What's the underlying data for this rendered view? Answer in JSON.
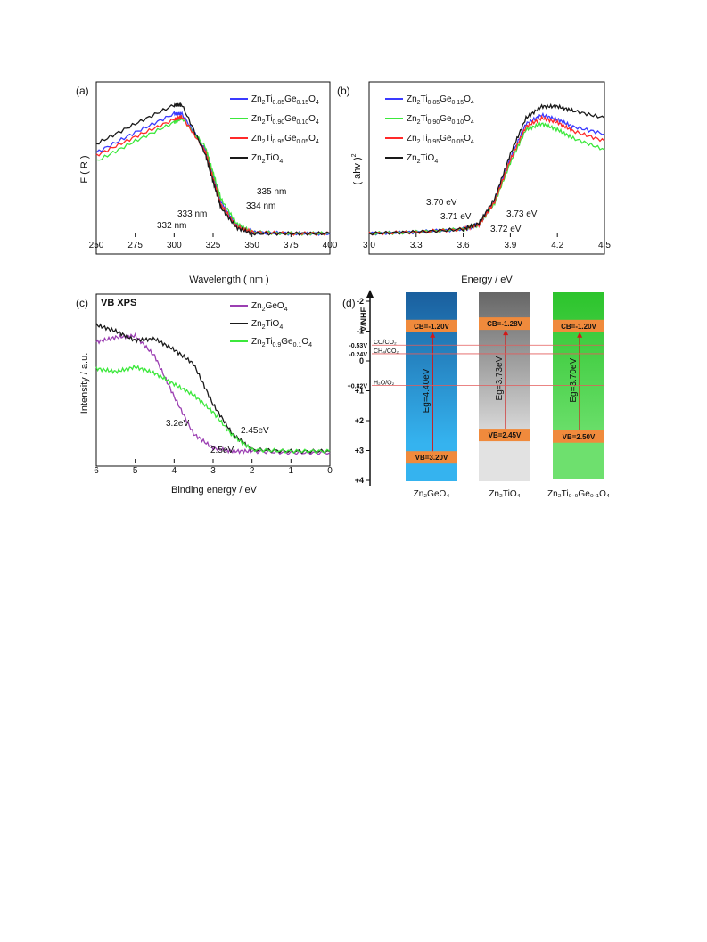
{
  "colors": {
    "blue": "#3a3aff",
    "green": "#3ce83c",
    "red": "#ff2a2a",
    "black": "#1a1a1a",
    "purple": "#9b3fb2"
  },
  "panel_a": {
    "label": "(a)",
    "xlabel": "Wavelength ( nm )",
    "ylabel": "F ( R )",
    "legend": [
      {
        "pre": "Zn",
        "s1": "2",
        "mid": "Ti",
        "s2": "0.85",
        "mid2": "Ge",
        "s3": "0.15",
        "end": "O",
        "s4": "4"
      },
      {
        "pre": "Zn",
        "s1": "2",
        "mid": "Ti",
        "s2": "0.90",
        "mid2": "Ge",
        "s3": "0.10",
        "end": "O",
        "s4": "4"
      },
      {
        "pre": "Zn",
        "s1": "2",
        "mid": "Ti",
        "s2": "0.95",
        "mid2": "Ge",
        "s3": "0.05",
        "end": "O",
        "s4": "4"
      },
      {
        "pre": "Zn",
        "s1": "2",
        "mid": "TiO",
        "s2": "4",
        "mid2": "",
        "s3": "",
        "end": "",
        "s4": ""
      }
    ],
    "annotations": [
      "335 nm",
      "334 nm",
      "333 nm",
      "332 nm"
    ]
  },
  "panel_b": {
    "label": "(b)",
    "xlabel": "Energy / eV",
    "ylabel": "( ahv )",
    "ylabel_sup": "2",
    "annotations": [
      "3.70 eV",
      "3.71 eV",
      "3.72 eV",
      "3.73 eV"
    ]
  },
  "panel_c": {
    "label": "(c)",
    "title": "VB XPS",
    "xlabel": "Binding energy / eV",
    "ylabel": "Intensity / a.u.",
    "legend": [
      {
        "pre": "Zn",
        "s1": "2",
        "mid": "GeO",
        "s2": "4",
        "mid2": "",
        "s3": "",
        "end": "",
        "s4": ""
      },
      {
        "pre": "Zn",
        "s1": "2",
        "mid": "TiO",
        "s2": "4",
        "mid2": "",
        "s3": "",
        "end": "",
        "s4": ""
      },
      {
        "pre": "Zn",
        "s1": "2",
        "mid": "Ti",
        "s2": "0.9",
        "mid2": "Ge",
        "s3": "0.1",
        "end": "O",
        "s4": "4"
      }
    ],
    "annotations": [
      "3.2eV",
      "2.45eV",
      "2.5eV"
    ]
  },
  "panel_d": {
    "label": "(d)",
    "axis_title": "V/NHE",
    "ticks": [
      "-2",
      "-1",
      "0",
      "+1",
      "+2",
      "+3",
      "+4"
    ],
    "levels": [
      {
        "text": "-0.53V",
        "couple": "CO/CO₂",
        "e": -0.53
      },
      {
        "text": "-0.24V",
        "couple": "CH₄/CO₂",
        "e": -0.24
      },
      {
        "text": "+0.82V",
        "couple": "H₂O/O₂",
        "e": 0.82
      }
    ],
    "columns": [
      {
        "name": "Zn₂GeO₄",
        "cb": "CB=-1.20V",
        "vb": "VB=3.20V",
        "gap": "Eg=4.40eV",
        "cb_e": -1.2,
        "vb_e": 3.2
      },
      {
        "name": "Zn₂TiO₄",
        "cb": "CB=-1.28V",
        "vb": "VB=2.45V",
        "gap": "Eg=3.73eV",
        "cb_e": -1.28,
        "vb_e": 2.45
      },
      {
        "name": "Zn₂Ti₀.₉Ge₀.₁O₄",
        "cb": "CB=-1.20V",
        "vb": "VB=2.50V",
        "gap": "Eg=3.70eV",
        "cb_e": -1.2,
        "vb_e": 2.5
      }
    ]
  },
  "chart_data": [
    {
      "type": "line",
      "panel": "a",
      "xlabel": "Wavelength ( nm )",
      "ylabel": "F ( R )",
      "xlim": [
        250,
        400
      ],
      "x": [
        250,
        275,
        300,
        305,
        320,
        325,
        330,
        340,
        350,
        375,
        400
      ],
      "series": [
        {
          "name": "Zn2Ti0.85Ge0.15O4",
          "values": [
            0.56,
            0.7,
            0.83,
            0.83,
            0.58,
            0.4,
            0.22,
            0.06,
            0.01,
            0.0,
            0.0
          ]
        },
        {
          "name": "Zn2Ti0.90Ge0.10O4",
          "values": [
            0.5,
            0.64,
            0.77,
            0.8,
            0.6,
            0.42,
            0.24,
            0.07,
            0.01,
            0.0,
            0.0
          ]
        },
        {
          "name": "Zn2Ti0.95Ge0.05O4",
          "values": [
            0.54,
            0.67,
            0.79,
            0.81,
            0.57,
            0.38,
            0.2,
            0.05,
            0.01,
            0.0,
            0.0
          ]
        },
        {
          "name": "Zn2TiO4",
          "values": [
            0.62,
            0.76,
            0.89,
            0.89,
            0.55,
            0.36,
            0.18,
            0.04,
            0.0,
            0.0,
            0.0
          ]
        }
      ]
    },
    {
      "type": "line",
      "panel": "b",
      "xlabel": "Energy / eV",
      "ylabel": "( ahv )2",
      "xlim": [
        3.0,
        4.5
      ],
      "x": [
        3.0,
        3.3,
        3.6,
        3.7,
        3.8,
        3.9,
        4.0,
        4.1,
        4.2,
        4.3,
        4.5
      ],
      "series": [
        {
          "name": "Zn2Ti0.85Ge0.15O4",
          "values": [
            0.0,
            0.01,
            0.03,
            0.06,
            0.22,
            0.52,
            0.76,
            0.82,
            0.79,
            0.74,
            0.69
          ]
        },
        {
          "name": "Zn2Ti0.90Ge0.10O4",
          "values": [
            0.0,
            0.01,
            0.03,
            0.06,
            0.21,
            0.49,
            0.72,
            0.76,
            0.72,
            0.66,
            0.58
          ]
        },
        {
          "name": "Zn2Ti0.95Ge0.05O4",
          "values": [
            0.0,
            0.01,
            0.03,
            0.06,
            0.22,
            0.51,
            0.74,
            0.8,
            0.77,
            0.71,
            0.64
          ]
        },
        {
          "name": "Zn2TiO4",
          "values": [
            0.0,
            0.01,
            0.03,
            0.07,
            0.24,
            0.55,
            0.8,
            0.88,
            0.88,
            0.85,
            0.8
          ]
        }
      ]
    },
    {
      "type": "line",
      "panel": "c",
      "xlabel": "Binding energy / eV",
      "ylabel": "Intensity / a.u.",
      "xlim": [
        6,
        0
      ],
      "x": [
        6,
        5.5,
        5,
        4.5,
        4,
        3.5,
        3,
        2.5,
        2,
        1,
        0
      ],
      "series": [
        {
          "name": "Zn2GeO4",
          "values": [
            0.75,
            0.78,
            0.79,
            0.66,
            0.4,
            0.16,
            0.07,
            0.05,
            0.05,
            0.04,
            0.04
          ]
        },
        {
          "name": "Zn2TiO4",
          "values": [
            0.86,
            0.82,
            0.76,
            0.77,
            0.7,
            0.61,
            0.35,
            0.16,
            0.06,
            0.05,
            0.05
          ]
        },
        {
          "name": "Zn2Ti0.9Ge0.1O4",
          "values": [
            0.58,
            0.56,
            0.59,
            0.55,
            0.48,
            0.41,
            0.3,
            0.15,
            0.06,
            0.05,
            0.05
          ]
        }
      ]
    }
  ]
}
